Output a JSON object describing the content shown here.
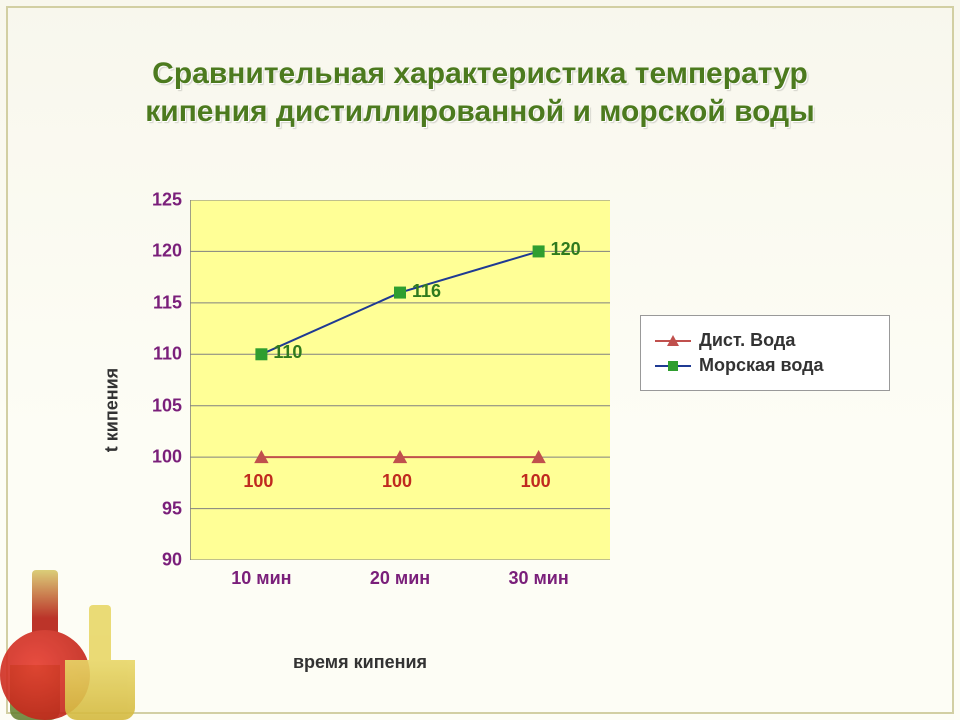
{
  "title_line1": "Сравнительная характеристика температур",
  "title_line2": "кипения дистиллированной и морской воды",
  "chart": {
    "type": "line",
    "xlabel": "время кипения",
    "ylabel": "t кипения",
    "categories": [
      "10 мин",
      "20 мин",
      "30 мин"
    ],
    "ylim": [
      90,
      125
    ],
    "ytick_step": 5,
    "yticks": [
      90,
      95,
      100,
      105,
      110,
      115,
      120,
      125
    ],
    "background_color": "#ffff96",
    "axis_color": "#808080",
    "series": [
      {
        "name": "Дист. Вода",
        "key": "dist",
        "values": [
          100,
          100,
          100
        ],
        "line_color": "#c0504d",
        "marker_color": "#c0504d",
        "marker": "triangle",
        "label_color": "#c02a1f",
        "line_width": 2
      },
      {
        "name": "Морская вода",
        "key": "sea",
        "values": [
          110,
          116,
          120
        ],
        "line_color": "#1f3a93",
        "marker_color": "#2f9e2f",
        "marker": "square",
        "label_color": "#2f7a1e",
        "line_width": 2
      }
    ],
    "title_color": "#4c7a1e",
    "title_fontsize": 30,
    "tick_label_color": "#7a1f7a",
    "tick_fontsize": 18,
    "label_fontsize": 18,
    "marker_size": 12
  }
}
